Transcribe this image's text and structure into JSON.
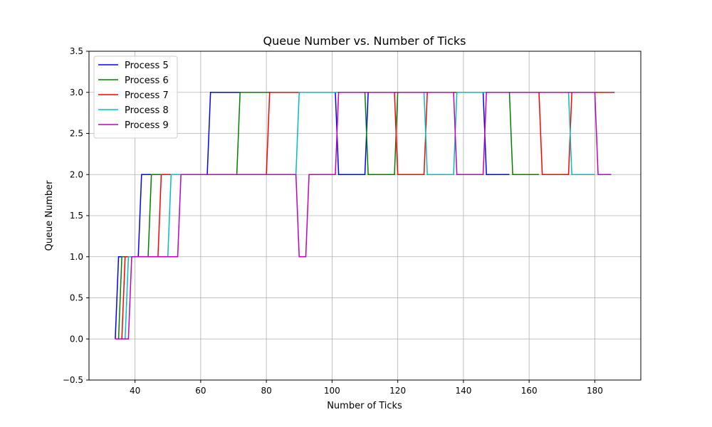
{
  "chart_data": {
    "type": "line",
    "title": "Queue Number vs. Number of Ticks",
    "xlabel": "Number of Ticks",
    "ylabel": "Queue Number",
    "xlim": [
      26,
      194
    ],
    "ylim": [
      -0.5,
      3.5
    ],
    "xticks": [
      40,
      60,
      80,
      100,
      120,
      140,
      160,
      180
    ],
    "yticks": [
      -0.5,
      0.0,
      0.5,
      1.0,
      1.5,
      2.0,
      2.5,
      3.0,
      3.5
    ],
    "ytick_labels": [
      "−0.5",
      "0.0",
      "0.5",
      "1.0",
      "1.5",
      "2.0",
      "2.5",
      "3.0",
      "3.5"
    ],
    "grid": true,
    "legend_position": "upper-left",
    "series": [
      {
        "name": "Process 5",
        "color": "#0000ff",
        "points": [
          [
            34,
            0
          ],
          [
            35,
            1
          ],
          [
            41,
            1
          ],
          [
            42,
            2
          ],
          [
            62,
            2
          ],
          [
            63,
            3
          ],
          [
            101,
            3
          ],
          [
            102,
            2
          ],
          [
            110,
            2
          ],
          [
            111,
            3
          ],
          [
            146,
            3
          ],
          [
            147,
            2
          ],
          [
            154,
            2
          ]
        ]
      },
      {
        "name": "Process 6",
        "color": "#008000",
        "points": [
          [
            35,
            0
          ],
          [
            36,
            1
          ],
          [
            44,
            1
          ],
          [
            45,
            2
          ],
          [
            71,
            2
          ],
          [
            72,
            3
          ],
          [
            110,
            3
          ],
          [
            111,
            2
          ],
          [
            119,
            2
          ],
          [
            120,
            3
          ],
          [
            154,
            3
          ],
          [
            155,
            2
          ],
          [
            163,
            2
          ]
        ]
      },
      {
        "name": "Process 7",
        "color": "#ff0000",
        "points": [
          [
            36,
            0
          ],
          [
            37,
            1
          ],
          [
            47,
            1
          ],
          [
            48,
            2
          ],
          [
            80,
            2
          ],
          [
            81,
            3
          ],
          [
            119,
            3
          ],
          [
            120,
            2
          ],
          [
            128,
            2
          ],
          [
            129,
            3
          ],
          [
            163,
            3
          ],
          [
            164,
            2
          ],
          [
            172,
            2
          ],
          [
            173,
            3
          ],
          [
            186,
            3
          ]
        ]
      },
      {
        "name": "Process 8",
        "color": "#00bfbf",
        "points": [
          [
            37,
            0
          ],
          [
            38,
            1
          ],
          [
            50,
            1
          ],
          [
            51,
            2
          ],
          [
            89,
            2
          ],
          [
            90,
            3
          ],
          [
            128,
            3
          ],
          [
            129,
            2
          ],
          [
            137,
            2
          ],
          [
            138,
            3
          ],
          [
            172,
            3
          ],
          [
            173,
            2
          ],
          [
            180,
            2
          ]
        ]
      },
      {
        "name": "Process 9",
        "color": "#bf00bf",
        "points": [
          [
            34,
            0
          ],
          [
            38,
            0
          ],
          [
            39,
            1
          ],
          [
            53,
            1
          ],
          [
            54,
            2
          ],
          [
            89,
            2
          ],
          [
            90,
            1
          ],
          [
            92,
            1
          ],
          [
            93,
            2
          ],
          [
            101,
            2
          ],
          [
            102,
            3
          ],
          [
            137,
            3
          ],
          [
            138,
            2
          ],
          [
            146,
            2
          ],
          [
            147,
            3
          ],
          [
            180,
            3
          ],
          [
            181,
            2
          ],
          [
            185,
            2
          ]
        ]
      }
    ]
  }
}
